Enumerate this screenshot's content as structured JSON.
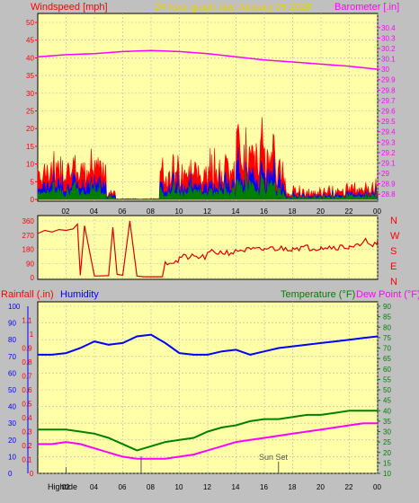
{
  "header": {
    "left_label": "Windspeed [mph]",
    "center_label": "24 hour graph day   January 05 2026",
    "right_label": "Barometer [.in]"
  },
  "wind_panel": {
    "left_ticks": [
      "50",
      "45",
      "40",
      "35",
      "30",
      "25",
      "20",
      "15",
      "10",
      "5",
      "0"
    ],
    "right_ticks": [
      "30.4",
      "30.3",
      "30.2",
      "30.1",
      "30",
      "29.9",
      "29.8",
      "29.7",
      "29.6",
      "29.5",
      "29.4",
      "29.3",
      "29.2",
      "29.1",
      "29",
      "28.9",
      "28.8"
    ]
  },
  "hour_labels": [
    "02",
    "04",
    "06",
    "08",
    "10",
    "12",
    "14",
    "16",
    "18",
    "20",
    "22",
    "00"
  ],
  "dir_panel": {
    "left_ticks": [
      "360",
      "270",
      "180",
      "90",
      "0"
    ],
    "compass": [
      "N",
      "W",
      "S",
      "E",
      "N"
    ]
  },
  "bottom_panel": {
    "label_rain": "Rainfall (.in)",
    "label_humidity": "Humidity",
    "label_temperature": "Temperature (°F)",
    "label_dewpoint": "Dew Point (°F)",
    "humidity_ticks": [
      "100",
      "90",
      "80",
      "70",
      "60",
      "50",
      "40",
      "30",
      "20",
      "10",
      "0"
    ],
    "rain_ticks": [
      "1.1",
      "1",
      "0.9",
      "0.8",
      "0.7",
      "0.6",
      "0.5",
      "0.4",
      "0.3",
      "0.2",
      "0.1",
      "0"
    ],
    "temp_ticks": [
      "90",
      "85",
      "80",
      "75",
      "70",
      "65",
      "60",
      "55",
      "50",
      "45",
      "40",
      "35",
      "30",
      "25",
      "20",
      "15",
      "10"
    ],
    "sunset_label": "Sun Set",
    "hightide_label": "Hightide"
  },
  "chart_data": [
    {
      "type": "line",
      "title": "",
      "xlabel": "",
      "ylabel": "Windspeed [mph] / Barometer [.in]",
      "ylim": [
        0,
        50
      ],
      "y2lim": [
        28.75,
        30.45
      ],
      "x": [
        0,
        2,
        4,
        6,
        8,
        10,
        12,
        14,
        16,
        18,
        20,
        22,
        24
      ],
      "series": [
        {
          "name": "Barometer [.in]",
          "color": "#ff00ff",
          "axis": "right",
          "values": [
            30.12,
            30.14,
            30.15,
            30.17,
            30.18,
            30.17,
            30.15,
            30.12,
            30.09,
            30.07,
            30.05,
            30.03,
            30.0
          ]
        }
      ],
      "wind_gust_color": "#ff0000",
      "wind_avg_color": "#0000ff",
      "wind_min_color": "#008000"
    },
    {
      "type": "line",
      "title": "",
      "ylim": [
        0,
        360
      ],
      "series": [
        {
          "name": "Wind direction",
          "color": "#dd0000",
          "x": [
            0,
            0.5,
            1,
            1.5,
            2,
            2.5,
            2.8,
            3,
            3.3,
            4,
            5,
            5.3,
            5.6,
            6,
            6.5,
            7,
            7.5,
            8,
            8.5,
            8.8,
            9,
            10,
            12,
            14,
            16,
            18,
            20,
            22,
            23,
            23.5,
            24
          ],
          "values": [
            280,
            300,
            290,
            305,
            300,
            310,
            340,
            15,
            330,
            10,
            12,
            320,
            20,
            15,
            360,
            10,
            5,
            5,
            5,
            5,
            100,
            130,
            160,
            175,
            185,
            190,
            195,
            200,
            230,
            210,
            240
          ]
        }
      ]
    },
    {
      "type": "line",
      "title": "",
      "ylim": [
        0,
        100
      ],
      "y2lim": [
        10,
        90
      ],
      "x": [
        0,
        1,
        2,
        3,
        4,
        5,
        6,
        7,
        8,
        9,
        10,
        11,
        12,
        13,
        14,
        15,
        16,
        17,
        18,
        19,
        20,
        21,
        22,
        23,
        24
      ],
      "series": [
        {
          "name": "Humidity",
          "color": "#0000ff",
          "axis": "left",
          "values": [
            71,
            71,
            72,
            75,
            79,
            77,
            78,
            82,
            83,
            78,
            72,
            71,
            71,
            73,
            74,
            71,
            73,
            75,
            76,
            77,
            78,
            79,
            80,
            81,
            82
          ]
        },
        {
          "name": "Temperature (°F)",
          "color": "#008000",
          "axis": "right",
          "values": [
            31,
            31,
            31,
            30,
            29,
            27,
            24,
            21,
            23,
            25,
            26,
            27,
            30,
            32,
            33,
            35,
            36,
            36,
            37,
            38,
            38,
            39,
            40,
            40,
            40
          ]
        },
        {
          "name": "Dew Point (°F)",
          "color": "#ff00ff",
          "axis": "right",
          "values": [
            24,
            24,
            25,
            24,
            22,
            20,
            18,
            17,
            17,
            17,
            18,
            19,
            21,
            23,
            25,
            26,
            27,
            28,
            29,
            30,
            31,
            32,
            33,
            34,
            34
          ]
        }
      ]
    }
  ]
}
